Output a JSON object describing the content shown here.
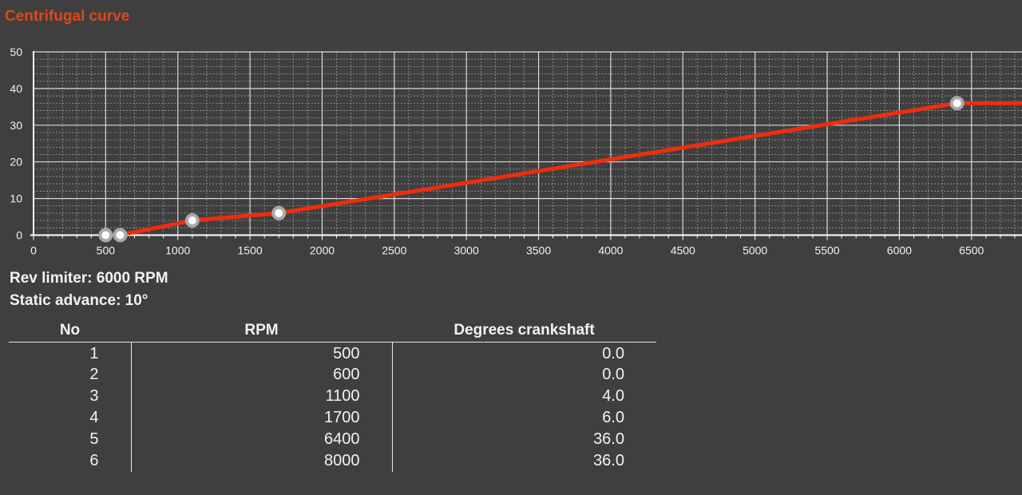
{
  "title": "Centrifugal curve",
  "colors": {
    "title": "#e0471b",
    "curve": "#ee2d10",
    "background": "#3f3f3f",
    "grid_major": "#d9d9d9",
    "grid_minor": "#9a9a9a"
  },
  "chart_data": {
    "type": "line",
    "title": "Centrifugal curve",
    "xlabel": "",
    "ylabel": "",
    "xlim": [
      0,
      6850
    ],
    "ylim": [
      0,
      50
    ],
    "x_ticks": [
      0,
      500,
      1000,
      1500,
      2000,
      2500,
      3000,
      3500,
      4000,
      4500,
      5000,
      5500,
      6000,
      6500
    ],
    "y_ticks": [
      0,
      10,
      20,
      30,
      40,
      50
    ],
    "grid": true,
    "series": [
      {
        "x": [
          500,
          600,
          1100,
          1700,
          6400,
          8000
        ],
        "y": [
          0.0,
          0.0,
          4.0,
          6.0,
          36.0,
          36.0
        ]
      }
    ]
  },
  "info": {
    "rev_limiter": "Rev limiter: 6000 RPM",
    "static_advance": "Static advance: 10°"
  },
  "table": {
    "headers": [
      "No",
      "RPM",
      "Degrees crankshaft"
    ],
    "rows": [
      [
        "1",
        "500",
        "0.0"
      ],
      [
        "2",
        "600",
        "0.0"
      ],
      [
        "3",
        "1100",
        "4.0"
      ],
      [
        "4",
        "1700",
        "6.0"
      ],
      [
        "5",
        "6400",
        "36.0"
      ],
      [
        "6",
        "8000",
        "36.0"
      ]
    ]
  }
}
